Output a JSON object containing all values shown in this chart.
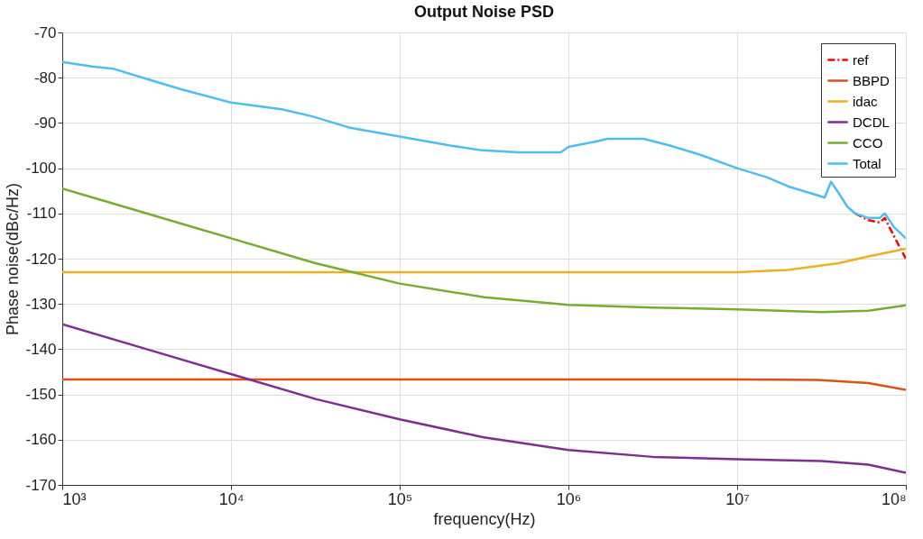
{
  "chart_data": {
    "type": "line",
    "title": "Output Noise PSD",
    "xlabel": "frequency(Hz)",
    "ylabel": "Phase noise(dBc/Hz)",
    "log": "x",
    "grid": true,
    "legend": "top right",
    "marker": "none",
    "xlim": [
      1000,
      100000000
    ],
    "ylim": [
      -170,
      -70
    ],
    "xticks": [
      {
        "value": 1000,
        "label": "10³"
      },
      {
        "value": 10000,
        "label": "10⁴"
      },
      {
        "value": 100000,
        "label": "10⁵"
      },
      {
        "value": 1000000,
        "label": "10⁶"
      },
      {
        "value": 10000000,
        "label": "10⁷"
      },
      {
        "value": 100000000,
        "label": "10⁸"
      }
    ],
    "yticks": [
      -170,
      -160,
      -150,
      -140,
      -130,
      -120,
      -110,
      -100,
      -90,
      -80,
      -70
    ],
    "series": [
      {
        "name": "ref",
        "color": "#ff0000",
        "line_style": "dashed",
        "x": [
          50000000,
          60000000,
          70000000,
          75000000,
          85000000,
          100000000
        ],
        "values": [
          -110,
          -111.5,
          -112,
          -111,
          -115,
          -120
        ]
      },
      {
        "name": "BBPD",
        "color": "#d95319",
        "line_style": "solid",
        "x": [
          1000,
          100000,
          10000000,
          30000000,
          60000000,
          100000000
        ],
        "values": [
          -146.7,
          -146.7,
          -146.7,
          -146.8,
          -147.5,
          -149
        ]
      },
      {
        "name": "idac",
        "color": "#edb120",
        "line_style": "solid",
        "x": [
          1000,
          100000,
          10000000,
          20000000,
          40000000,
          60000000,
          100000000
        ],
        "values": [
          -123,
          -123,
          -123,
          -122.5,
          -121,
          -119.5,
          -117.8
        ]
      },
      {
        "name": "DCDL",
        "color": "#7e2f8e",
        "line_style": "solid",
        "x": [
          1000,
          3162,
          10000,
          31623,
          100000,
          316228,
          1000000,
          3162278,
          10000000,
          31622777,
          60000000,
          100000000
        ],
        "values": [
          -134.5,
          -140,
          -145.5,
          -151,
          -155.5,
          -159.5,
          -162.3,
          -163.8,
          -164.3,
          -164.7,
          -165.5,
          -167.3
        ]
      },
      {
        "name": "CCO",
        "color": "#77ac30",
        "line_style": "solid",
        "x": [
          1000,
          3162,
          10000,
          31623,
          100000,
          316228,
          1000000,
          3162278,
          10000000,
          31622777,
          60000000,
          100000000
        ],
        "values": [
          -104.5,
          -110,
          -115.5,
          -121,
          -125.5,
          -128.5,
          -130.2,
          -130.8,
          -131.2,
          -131.8,
          -131.5,
          -130.3
        ]
      },
      {
        "name": "Total",
        "color": "#4dbeee",
        "line_style": "solid",
        "x": [
          1000,
          1500,
          2000,
          3000,
          5000,
          10000,
          20000,
          30000,
          50000,
          100000,
          200000,
          300000,
          500000,
          900000,
          1000000,
          1500000,
          1700000,
          2800000,
          4000000,
          6000000,
          10000000,
          15000000,
          20000000,
          30000000,
          33000000,
          36000000,
          40000000,
          45000000,
          50000000,
          60000000,
          70000000,
          75000000,
          85000000,
          100000000
        ],
        "values": [
          -76.5,
          -77.5,
          -78,
          -80,
          -82.5,
          -85.5,
          -87,
          -88.5,
          -91,
          -93,
          -95,
          -96,
          -96.5,
          -96.5,
          -95.3,
          -94,
          -93.5,
          -93.5,
          -95,
          -97,
          -100,
          -102,
          -104,
          -106,
          -106.5,
          -103,
          -105.5,
          -108.5,
          -110,
          -111,
          -111,
          -110,
          -113,
          -115.5
        ]
      }
    ]
  }
}
